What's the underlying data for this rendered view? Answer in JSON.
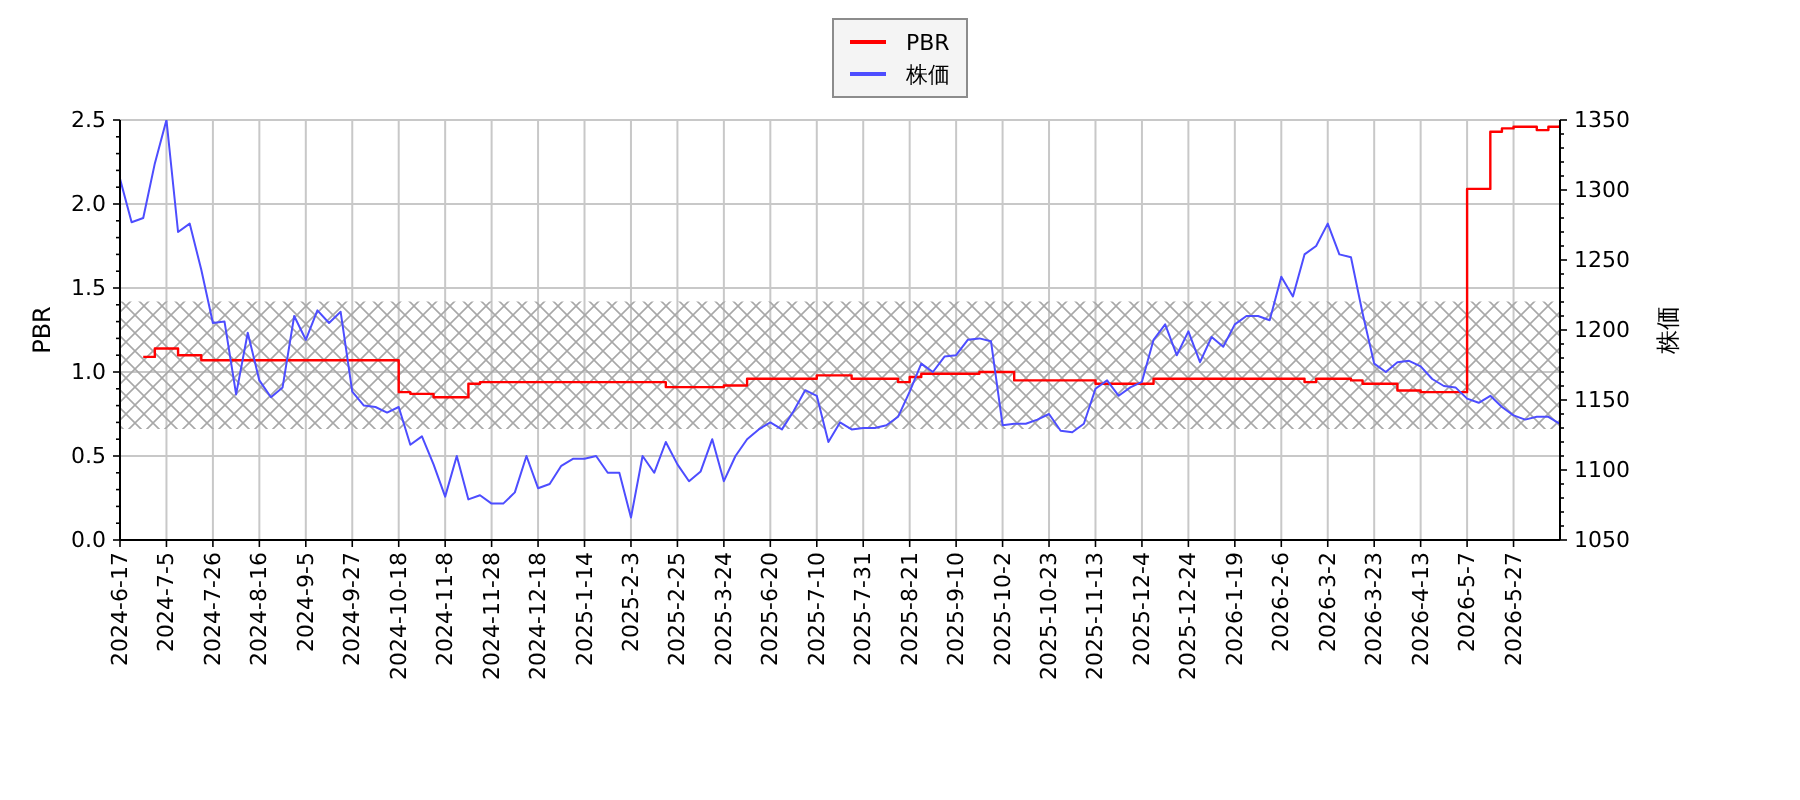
{
  "chart_data": {
    "type": "line",
    "categories": [
      "2024-6-17",
      null,
      null,
      null,
      "2024-7-5",
      null,
      null,
      null,
      "2024-7-26",
      null,
      null,
      null,
      "2024-8-16",
      null,
      null,
      null,
      "2024-9-5",
      null,
      null,
      null,
      "2024-9-27",
      null,
      null,
      null,
      "2024-10-18",
      null,
      null,
      null,
      "2024-11-8",
      null,
      null,
      null,
      "2024-11-28",
      null,
      null,
      null,
      "2024-12-18",
      null,
      null,
      null,
      "2025-1-14",
      null,
      null,
      null,
      "2025-2-3",
      null,
      null,
      null,
      "2025-2-25",
      null,
      null,
      null,
      "2025-3-24",
      null,
      null,
      null,
      "2025-6-20",
      null,
      null,
      null,
      "2025-7-10",
      null,
      null,
      null,
      "2025-7-31",
      null,
      null,
      null,
      "2025-8-21",
      null,
      null,
      null,
      "2025-9-10",
      null,
      null,
      null,
      "2025-10-2",
      null,
      null,
      null,
      "2025-10-23",
      null,
      null,
      null,
      "2025-11-13",
      null,
      null,
      null,
      "2025-12-4",
      null,
      null,
      null,
      "2025-12-24",
      null,
      null,
      null,
      "2026-1-19",
      null,
      null,
      null,
      "2026-2-6",
      null,
      null,
      null,
      "2026-3-2",
      null,
      null,
      null,
      "2026-3-23",
      null,
      null,
      null,
      "2026-4-13",
      null,
      null,
      null,
      "2026-5-7",
      null,
      null,
      null,
      "2026-5-27",
      null,
      null,
      null,
      null
    ],
    "series": [
      {
        "name": "PBR",
        "type": "step",
        "color": "#ff0000",
        "values": [
          null,
          null,
          1.09,
          1.14,
          1.14,
          1.1,
          1.1,
          1.07,
          1.07,
          1.07,
          1.07,
          1.07,
          1.07,
          1.07,
          1.07,
          1.07,
          1.07,
          1.07,
          1.07,
          1.07,
          1.07,
          1.07,
          1.07,
          1.07,
          0.88,
          0.87,
          0.87,
          0.85,
          0.85,
          0.85,
          0.93,
          0.94,
          0.94,
          0.94,
          0.94,
          0.94,
          0.94,
          0.94,
          0.94,
          0.94,
          0.94,
          0.94,
          0.94,
          0.94,
          0.94,
          0.94,
          0.94,
          0.91,
          0.91,
          0.91,
          0.91,
          0.91,
          0.92,
          0.92,
          0.96,
          0.96,
          0.96,
          0.96,
          0.96,
          0.96,
          0.98,
          0.98,
          0.98,
          0.96,
          0.96,
          0.96,
          0.96,
          0.94,
          0.97,
          0.99,
          0.99,
          0.99,
          0.99,
          0.99,
          1.0,
          1.0,
          1.0,
          0.95,
          0.95,
          0.95,
          0.95,
          0.95,
          0.95,
          0.95,
          0.93,
          0.93,
          0.93,
          0.93,
          0.93,
          0.96,
          0.96,
          0.96,
          0.96,
          0.96,
          0.96,
          0.96,
          0.96,
          0.96,
          0.96,
          0.96,
          0.96,
          0.96,
          0.94,
          0.96,
          0.96,
          0.96,
          0.95,
          0.93,
          0.93,
          0.93,
          0.89,
          0.89,
          0.88,
          0.88,
          0.88,
          0.88,
          2.09,
          2.09,
          2.43,
          2.45,
          2.46,
          2.46,
          2.44,
          2.46,
          2.47
        ]
      },
      {
        "name": "株価",
        "color": "#4d4dff",
        "axis": "y2",
        "values": [
          1308,
          1277,
          1280,
          1319,
          1350,
          1270,
          1276,
          1243,
          1205,
          1206,
          1154,
          1198,
          1164,
          1152,
          1159,
          1210,
          1193,
          1214,
          1205,
          1213,
          1156,
          1146,
          1145,
          1141,
          1145,
          1118,
          1124,
          1104,
          1081,
          1110,
          1079,
          1082,
          1076,
          1076,
          1084,
          1110,
          1087,
          1090,
          1103,
          1108,
          1108,
          1110,
          1098,
          1098,
          1066,
          1110,
          1098,
          1120,
          1104,
          1092,
          1099,
          1122,
          1092,
          1110,
          1122,
          1129,
          1134,
          1129,
          1142,
          1157,
          1153,
          1120,
          1134,
          1129,
          1130,
          1130,
          1132,
          1138,
          1156,
          1176,
          1170,
          1181,
          1182,
          1193,
          1194,
          1192,
          1132,
          1133,
          1133,
          1136,
          1140,
          1128,
          1127,
          1133,
          1158,
          1164,
          1153,
          1159,
          1163,
          1193,
          1204,
          1182,
          1199,
          1177,
          1195,
          1188,
          1204,
          1210,
          1210,
          1207,
          1238,
          1224,
          1254,
          1260,
          1276,
          1254,
          1252,
          1212,
          1176,
          1170,
          1177,
          1178,
          1174,
          1165,
          1160,
          1159,
          1151,
          1148,
          1153,
          1145,
          1139,
          1136,
          1138,
          1138,
          1133
        ]
      }
    ],
    "ylabel": "PBR",
    "y2label": "株価",
    "ylim": [
      0,
      2.5
    ],
    "yticks": [
      {
        "value": 0,
        "label": "0.0"
      },
      {
        "value": 0.1,
        "label": null
      },
      {
        "value": 0.2,
        "label": null
      },
      {
        "value": 0.3,
        "label": null
      },
      {
        "value": 0.4,
        "label": null
      },
      0.5,
      {
        "value": 0.6,
        "label": null
      },
      {
        "value": 0.7,
        "label": null
      },
      {
        "value": 0.8,
        "label": null
      },
      {
        "value": 0.9,
        "label": null
      },
      {
        "value": 1,
        "label": "1.0"
      },
      {
        "value": 1.1,
        "label": null
      },
      {
        "value": 1.2,
        "label": null
      },
      {
        "value": 1.3,
        "label": null
      },
      {
        "value": 1.4,
        "label": null
      },
      1.5,
      {
        "value": 1.6,
        "label": null
      },
      {
        "value": 1.7,
        "label": null
      },
      {
        "value": 1.8,
        "label": null
      },
      {
        "value": 1.9,
        "label": null
      },
      {
        "value": 2,
        "label": "2.0"
      },
      {
        "value": 2.1,
        "label": null
      },
      {
        "value": 2.2,
        "label": null
      },
      {
        "value": 2.3,
        "label": null
      },
      {
        "value": 2.4,
        "label": null
      },
      2.5
    ],
    "y2lim": [
      1050,
      1350
    ],
    "y2ticks": [
      1050,
      {
        "value": 1060,
        "label": null
      },
      {
        "value": 1070,
        "label": null
      },
      {
        "value": 1080,
        "label": null
      },
      {
        "value": 1090,
        "label": null
      },
      1100,
      {
        "value": 1110,
        "label": null
      },
      {
        "value": 1120,
        "label": null
      },
      {
        "value": 1130,
        "label": null
      },
      {
        "value": 1140,
        "label": null
      },
      1150,
      {
        "value": 1160,
        "label": null
      },
      {
        "value": 1170,
        "label": null
      },
      {
        "value": 1180,
        "label": null
      },
      {
        "value": 1190,
        "label": null
      },
      1200,
      {
        "value": 1210,
        "label": null
      },
      {
        "value": 1220,
        "label": null
      },
      {
        "value": 1230,
        "label": null
      },
      {
        "value": 1240,
        "label": null
      },
      1250,
      {
        "value": 1260,
        "label": null
      },
      {
        "value": 1270,
        "label": null
      },
      {
        "value": 1280,
        "label": null
      },
      {
        "value": 1290,
        "label": null
      },
      1300,
      {
        "value": 1310,
        "label": null
      },
      {
        "value": 1320,
        "label": null
      },
      {
        "value": 1330,
        "label": null
      },
      {
        "value": 1340,
        "label": null
      },
      1350
    ],
    "bands": [
      {
        "axis": "y",
        "from": 0.66,
        "to": 1.42,
        "color": "#a8a8a8"
      }
    ],
    "grid": true,
    "legend": "top"
  }
}
